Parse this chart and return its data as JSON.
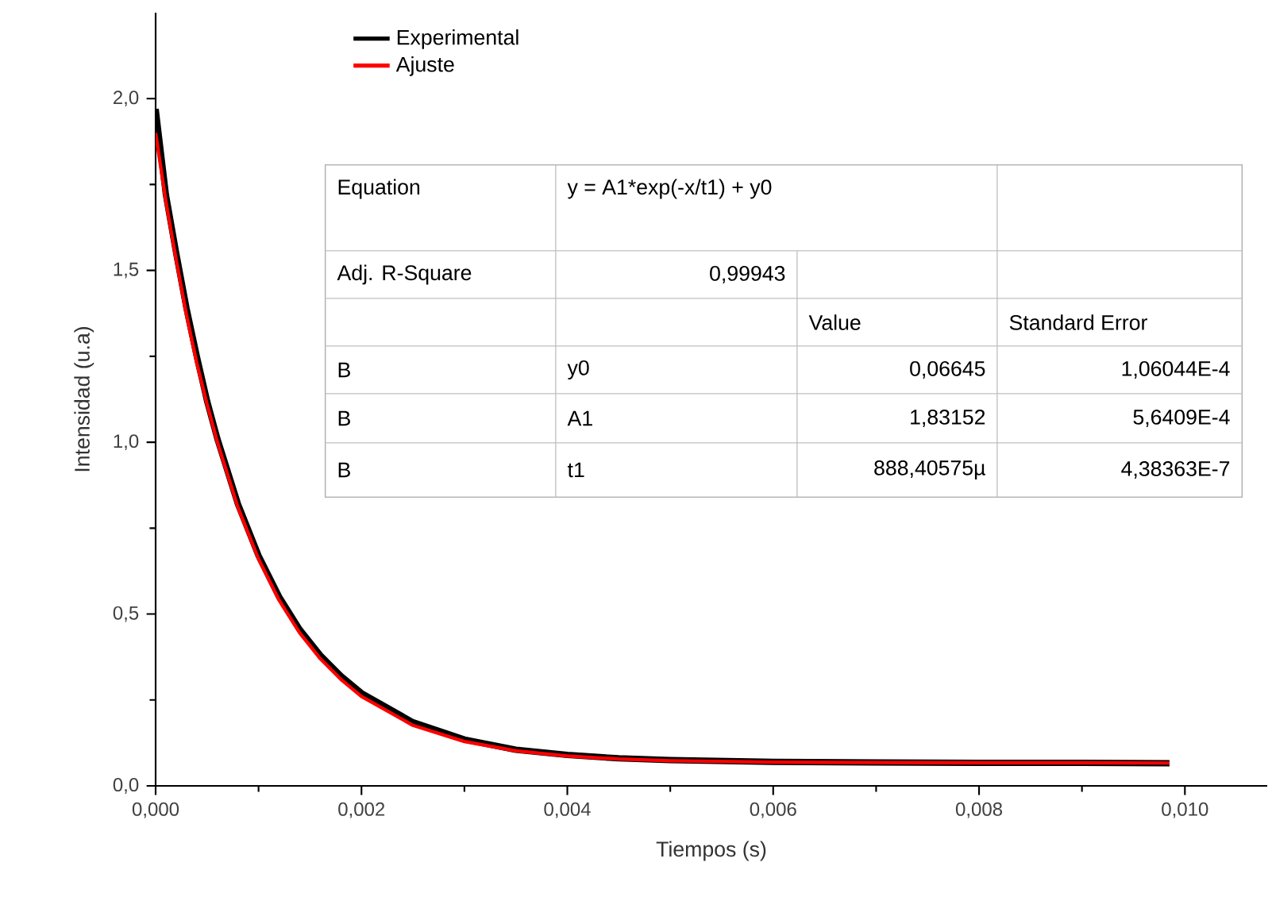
{
  "chart_data": {
    "type": "line",
    "xlabel": "Tiempos (s)",
    "ylabel": "Intensidad (u.a)",
    "x": [
      0,
      0.0001,
      0.0002,
      0.0003,
      0.0004,
      0.0005,
      0.0006,
      0.0008,
      0.001,
      0.0012,
      0.0014,
      0.0016,
      0.0018,
      0.002,
      0.0025,
      0.003,
      0.0035,
      0.004,
      0.0045,
      0.005,
      0.006,
      0.007,
      0.008,
      0.009,
      0.00985
    ],
    "series": [
      {
        "name": "Experimental",
        "color": "#000000",
        "values": [
          1.97,
          1.72,
          1.55,
          1.39,
          1.25,
          1.12,
          1.01,
          0.82,
          0.67,
          0.55,
          0.455,
          0.38,
          0.32,
          0.27,
          0.185,
          0.135,
          0.105,
          0.09,
          0.08,
          0.075,
          0.07,
          0.068,
          0.067,
          0.067,
          0.066
        ]
      },
      {
        "name": "Ajuste",
        "color": "#ff0000",
        "values": [
          1.9,
          1.7,
          1.53,
          1.37,
          1.23,
          1.11,
          1.0,
          0.81,
          0.66,
          0.54,
          0.445,
          0.37,
          0.31,
          0.26,
          0.176,
          0.129,
          0.102,
          0.087,
          0.078,
          0.073,
          0.069,
          0.068,
          0.067,
          0.067,
          0.066
        ]
      }
    ],
    "xlim": [
      0,
      0.0108
    ],
    "ylim": [
      0,
      2.25
    ],
    "xticks": [
      {
        "value": 0,
        "label": "0,000"
      },
      {
        "value": 0.002,
        "label": "0,002"
      },
      {
        "value": 0.004,
        "label": "0,004"
      },
      {
        "value": 0.006,
        "label": "0,006"
      },
      {
        "value": 0.008,
        "label": "0,008"
      },
      {
        "value": 0.01,
        "label": "0,010"
      }
    ],
    "yticks": [
      {
        "value": 0,
        "label": "0,0"
      },
      {
        "value": 0.5,
        "label": "0,5"
      },
      {
        "value": 1.0,
        "label": "1,0"
      },
      {
        "value": 1.5,
        "label": "1,5"
      },
      {
        "value": 2.0,
        "label": "2,0"
      }
    ],
    "legend": "top left",
    "grid": false,
    "marker": "none",
    "line_style": "solid",
    "annotations": [
      "Equation",
      "y = A1*exp(-x/t1) + y0",
      "Adj. R-Square",
      "0,99943",
      "Value",
      "Standard Error",
      "B",
      "y0",
      "0,06645",
      "1,06044E-4",
      "B",
      "A1",
      "1,83152",
      "5,6409E-4",
      "B",
      "t1",
      "888,40575µ",
      "4,38363E-7"
    ]
  }
}
